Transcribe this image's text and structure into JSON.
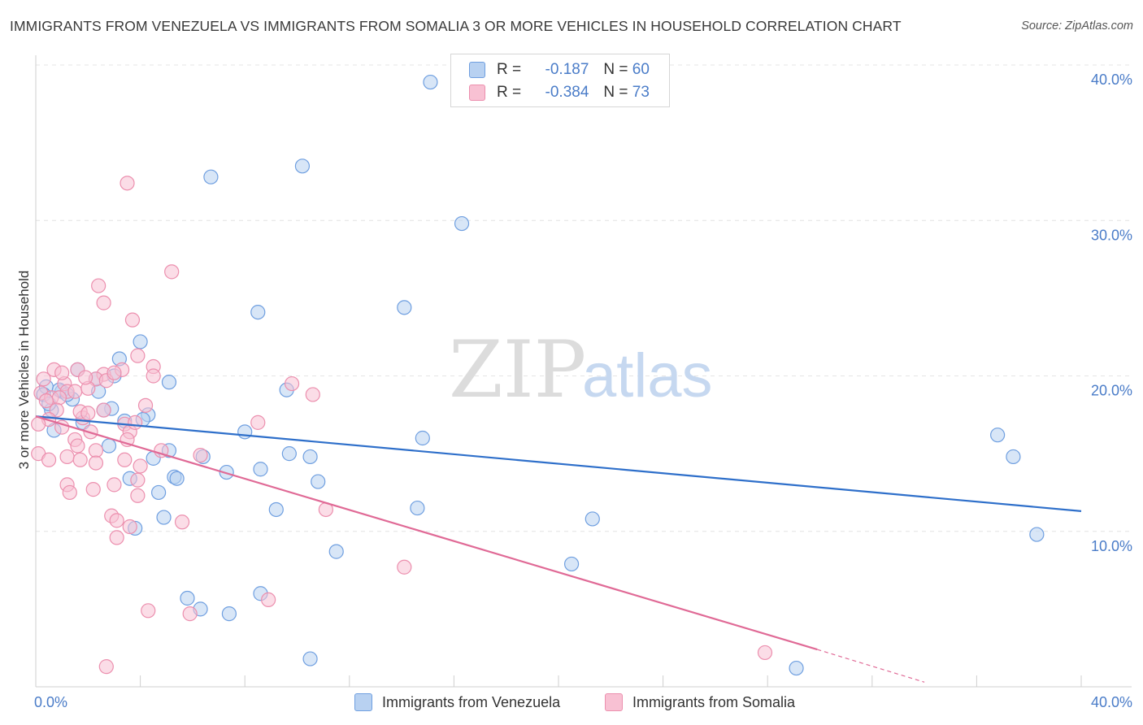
{
  "title": "IMMIGRANTS FROM VENEZUELA VS IMMIGRANTS FROM SOMALIA 3 OR MORE VEHICLES IN HOUSEHOLD CORRELATION CHART",
  "source": "Source: ZipAtlas.com",
  "watermark": {
    "zip": "ZIP",
    "atlas": "atlas"
  },
  "legend": {
    "r_label": "R =",
    "n_label": "N =",
    "venezuela": {
      "r": "-0.187",
      "n": "60"
    },
    "somalia": {
      "r": "-0.384",
      "n": "73"
    }
  },
  "colors": {
    "venezuela_fill": "#b8d1f1",
    "venezuela_stroke": "#6f9fe0",
    "venezuela_line": "#2e6fca",
    "somalia_fill": "#f8c1d3",
    "somalia_stroke": "#ec8fae",
    "somalia_line": "#e06a96"
  },
  "chart_data": {
    "type": "scatter",
    "title": "IMMIGRANTS FROM VENEZUELA VS IMMIGRANTS FROM SOMALIA 3 OR MORE VEHICLES IN HOUSEHOLD CORRELATION CHART",
    "xlabel": "",
    "ylabel": "3 or more Vehicles in Household",
    "xlim": [
      0,
      40
    ],
    "ylim": [
      0,
      40
    ],
    "x_tick_labels": [
      "0.0%",
      "40.0%"
    ],
    "y_ticks": [
      10,
      20,
      30,
      40
    ],
    "y_tick_labels": [
      "10.0%",
      "20.0%",
      "30.0%",
      "40.0%"
    ],
    "grid": true,
    "legend_position": "top-center",
    "series": [
      {
        "name": "Immigrants from Venezuela",
        "r": -0.187,
        "n": 60,
        "trend": {
          "x": [
            0,
            40
          ],
          "y": [
            17.4,
            11.3
          ]
        },
        "points": [
          [
            15.1,
            38.9
          ],
          [
            10.2,
            33.5
          ],
          [
            6.7,
            32.8
          ],
          [
            16.3,
            29.8
          ],
          [
            8.5,
            24.1
          ],
          [
            14.1,
            24.4
          ],
          [
            4.0,
            22.2
          ],
          [
            3.2,
            21.1
          ],
          [
            1.6,
            20.4
          ],
          [
            5.1,
            19.6
          ],
          [
            3.0,
            20.0
          ],
          [
            0.4,
            19.3
          ],
          [
            0.3,
            18.8
          ],
          [
            1.0,
            19.0
          ],
          [
            1.4,
            18.5
          ],
          [
            2.4,
            19.0
          ],
          [
            2.9,
            17.9
          ],
          [
            0.6,
            17.8
          ],
          [
            9.6,
            19.1
          ],
          [
            2.6,
            17.8
          ],
          [
            4.3,
            17.5
          ],
          [
            4.1,
            17.2
          ],
          [
            3.4,
            17.1
          ],
          [
            1.8,
            17.0
          ],
          [
            0.7,
            16.5
          ],
          [
            8.0,
            16.4
          ],
          [
            14.8,
            16.0
          ],
          [
            2.8,
            15.5
          ],
          [
            5.1,
            15.2
          ],
          [
            6.4,
            14.8
          ],
          [
            4.5,
            14.7
          ],
          [
            9.7,
            15.0
          ],
          [
            10.5,
            14.8
          ],
          [
            8.6,
            14.0
          ],
          [
            7.3,
            13.8
          ],
          [
            3.6,
            13.4
          ],
          [
            5.3,
            13.5
          ],
          [
            5.4,
            13.4
          ],
          [
            10.8,
            13.2
          ],
          [
            4.7,
            12.5
          ],
          [
            9.2,
            11.4
          ],
          [
            14.6,
            11.5
          ],
          [
            3.8,
            10.2
          ],
          [
            4.9,
            10.9
          ],
          [
            21.3,
            10.8
          ],
          [
            11.5,
            8.7
          ],
          [
            20.5,
            7.9
          ],
          [
            36.8,
            16.2
          ],
          [
            37.4,
            14.8
          ],
          [
            38.3,
            9.8
          ],
          [
            8.6,
            6.0
          ],
          [
            5.8,
            5.7
          ],
          [
            6.3,
            5.0
          ],
          [
            7.4,
            4.7
          ],
          [
            10.5,
            1.8
          ],
          [
            29.1,
            1.2
          ],
          [
            0.9,
            19.1
          ],
          [
            1.2,
            18.8
          ],
          [
            2.3,
            19.8
          ],
          [
            0.5,
            18.2
          ]
        ]
      },
      {
        "name": "Immigrants from Somalia",
        "r": -0.384,
        "n": 73,
        "trend_solid": {
          "x": [
            0,
            29.9
          ],
          "y": [
            17.4,
            2.4
          ]
        },
        "trend_dashed": {
          "x": [
            29.9,
            34.0
          ],
          "y": [
            2.4,
            0.3
          ]
        },
        "points": [
          [
            3.5,
            32.4
          ],
          [
            5.2,
            26.7
          ],
          [
            2.4,
            25.8
          ],
          [
            2.6,
            24.7
          ],
          [
            3.7,
            23.6
          ],
          [
            3.9,
            21.3
          ],
          [
            4.5,
            20.6
          ],
          [
            3.3,
            20.4
          ],
          [
            0.7,
            20.4
          ],
          [
            1.6,
            20.4
          ],
          [
            2.6,
            20.1
          ],
          [
            4.5,
            20.0
          ],
          [
            2.3,
            19.8
          ],
          [
            1.1,
            19.5
          ],
          [
            2.7,
            19.7
          ],
          [
            1.2,
            19.0
          ],
          [
            0.2,
            18.9
          ],
          [
            1.5,
            19.0
          ],
          [
            0.6,
            18.6
          ],
          [
            10.6,
            18.8
          ],
          [
            9.8,
            19.5
          ],
          [
            0.9,
            18.6
          ],
          [
            2.0,
            19.2
          ],
          [
            4.2,
            18.1
          ],
          [
            0.8,
            17.8
          ],
          [
            2.6,
            17.8
          ],
          [
            1.8,
            17.3
          ],
          [
            0.5,
            17.2
          ],
          [
            3.4,
            16.9
          ],
          [
            8.5,
            17.0
          ],
          [
            1.0,
            16.7
          ],
          [
            2.1,
            16.4
          ],
          [
            3.6,
            16.4
          ],
          [
            0.1,
            16.9
          ],
          [
            1.5,
            15.9
          ],
          [
            1.6,
            15.5
          ],
          [
            3.5,
            15.9
          ],
          [
            2.3,
            15.2
          ],
          [
            4.8,
            15.2
          ],
          [
            6.3,
            14.9
          ],
          [
            0.1,
            15.0
          ],
          [
            0.5,
            14.6
          ],
          [
            1.2,
            14.8
          ],
          [
            1.7,
            14.6
          ],
          [
            2.3,
            14.4
          ],
          [
            3.4,
            14.6
          ],
          [
            3.0,
            13.0
          ],
          [
            3.9,
            13.3
          ],
          [
            1.2,
            13.0
          ],
          [
            2.2,
            12.7
          ],
          [
            1.3,
            12.5
          ],
          [
            3.9,
            12.3
          ],
          [
            11.1,
            11.4
          ],
          [
            2.9,
            11.0
          ],
          [
            3.1,
            10.7
          ],
          [
            5.6,
            10.6
          ],
          [
            3.6,
            10.3
          ],
          [
            3.1,
            9.6
          ],
          [
            14.1,
            7.7
          ],
          [
            8.9,
            5.6
          ],
          [
            4.3,
            4.9
          ],
          [
            5.9,
            4.7
          ],
          [
            27.9,
            2.2
          ],
          [
            2.7,
            1.3
          ],
          [
            0.3,
            19.8
          ],
          [
            1.7,
            17.7
          ],
          [
            3.0,
            20.2
          ],
          [
            3.8,
            17.0
          ],
          [
            2.0,
            17.6
          ],
          [
            4.0,
            14.2
          ],
          [
            1.0,
            20.2
          ],
          [
            0.4,
            18.4
          ],
          [
            1.9,
            19.9
          ]
        ]
      }
    ]
  }
}
